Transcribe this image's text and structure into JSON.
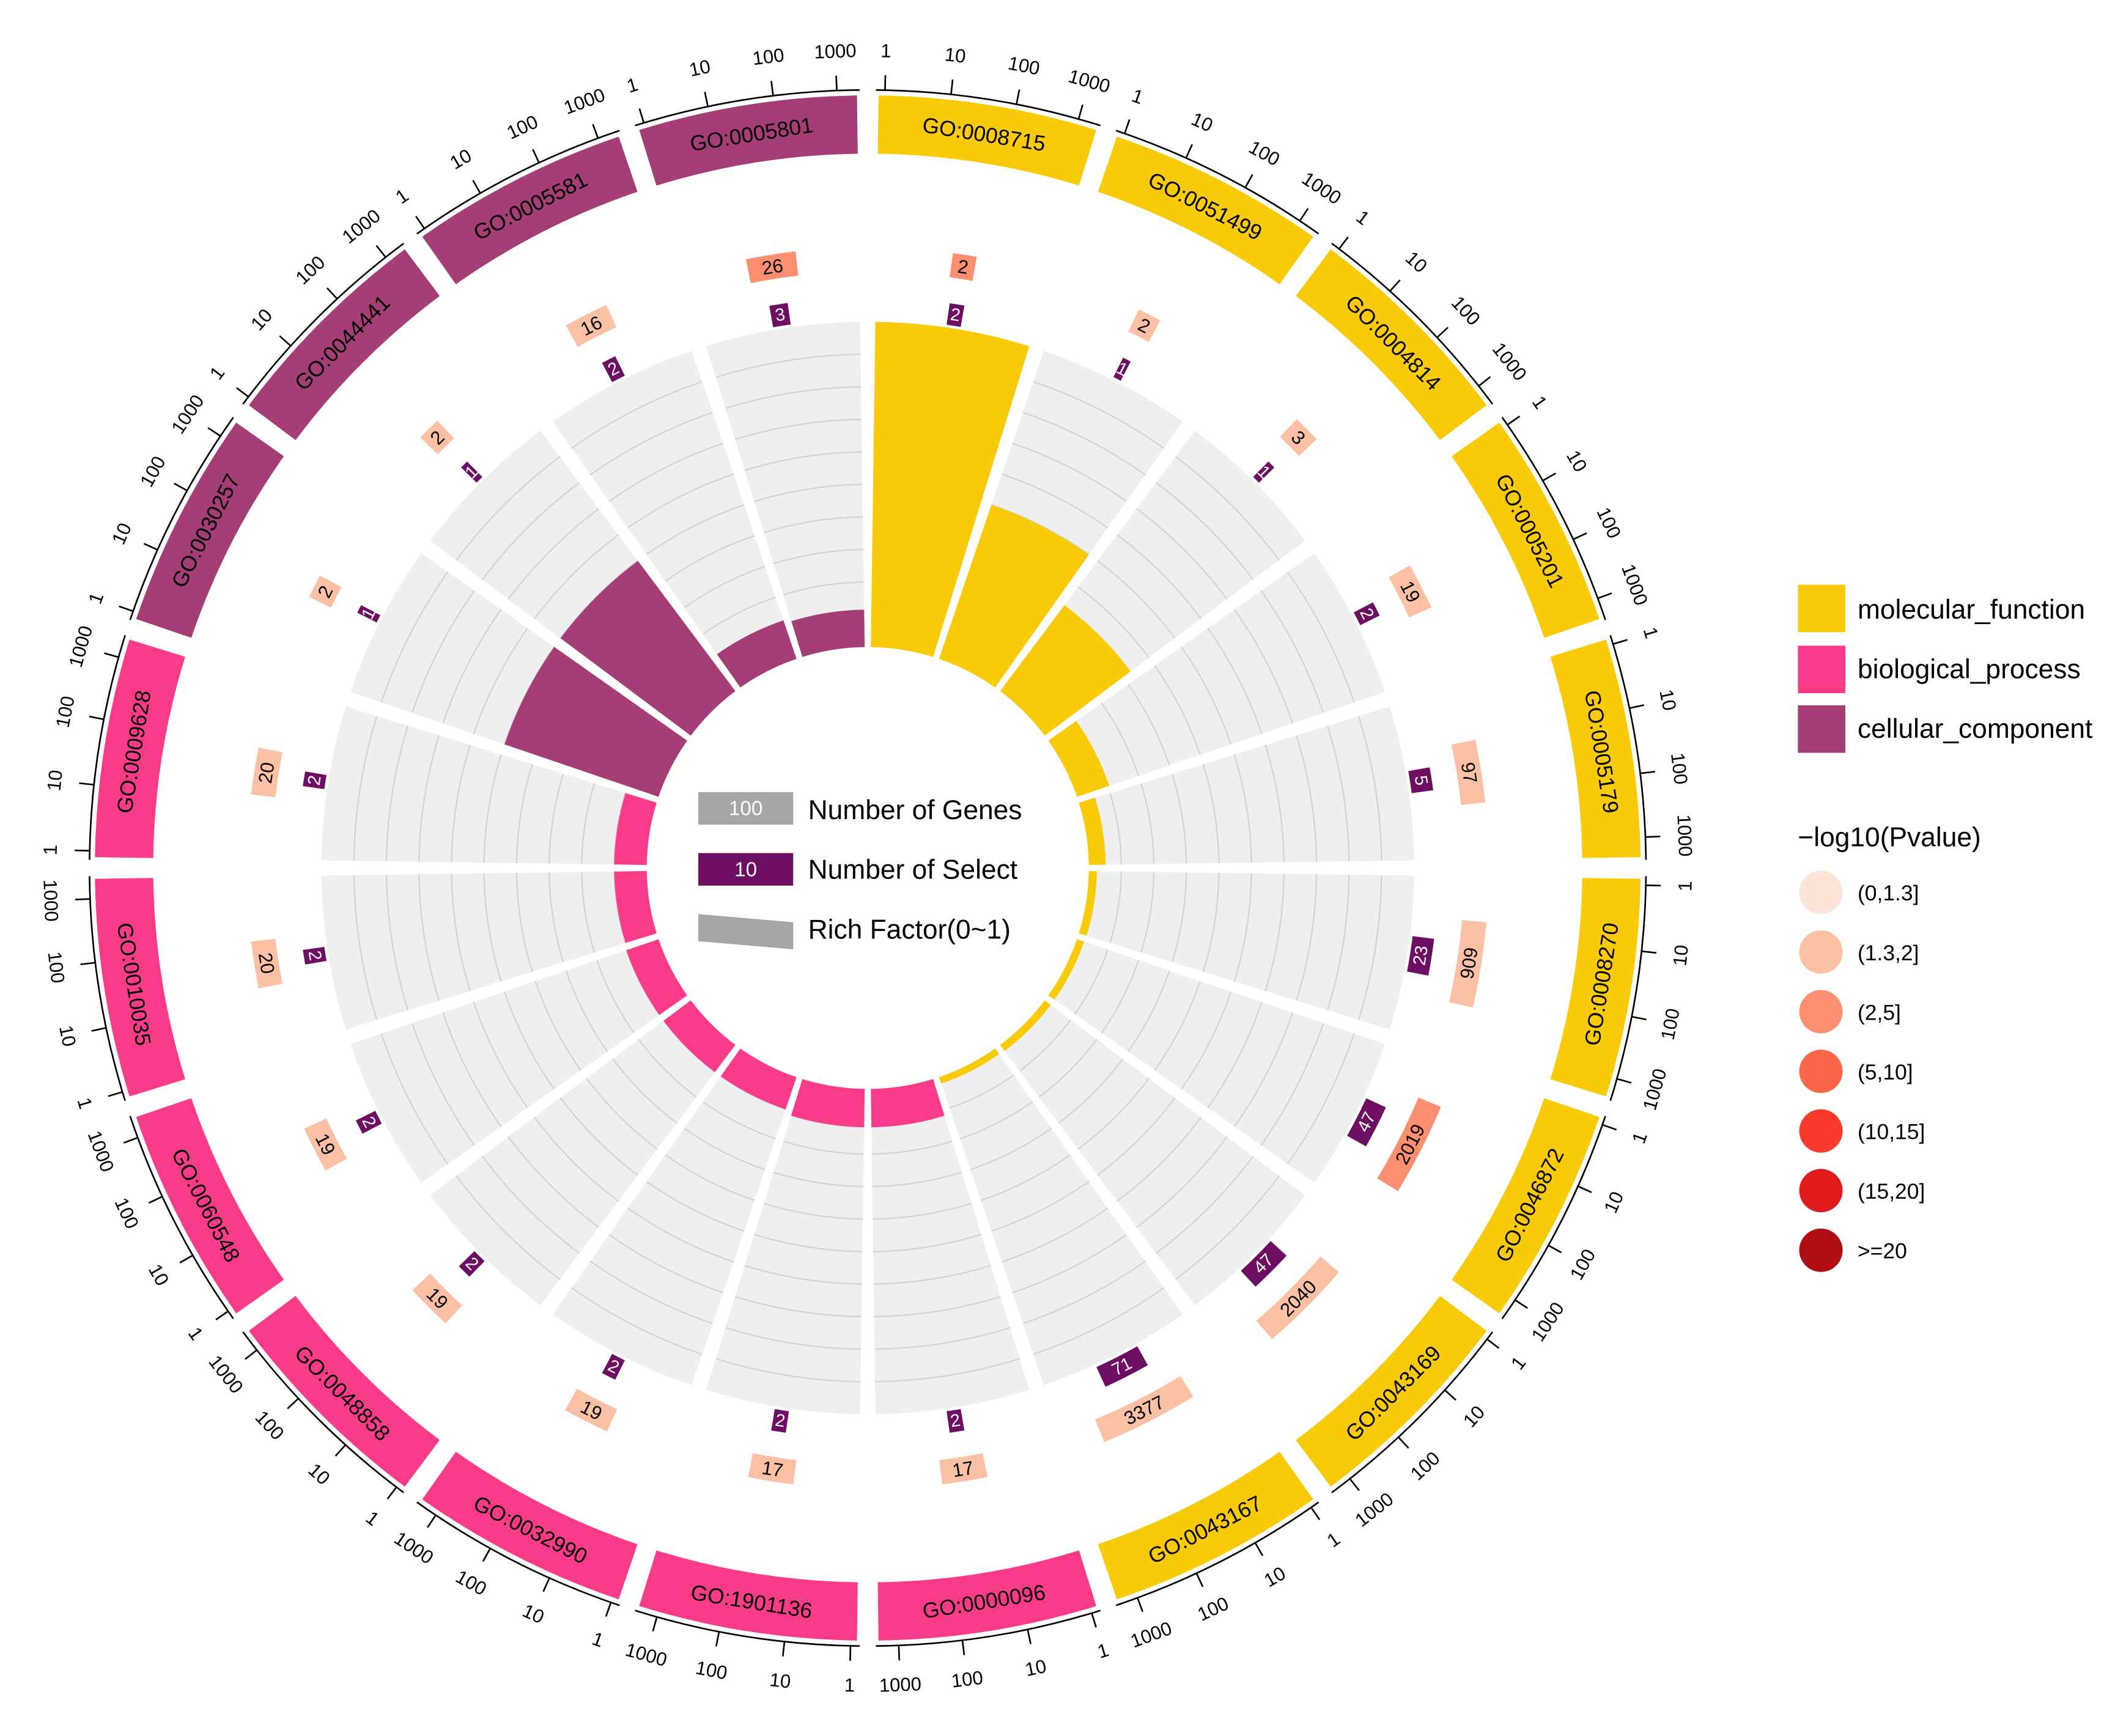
{
  "chart_data": {
    "type": "circular-go-enrichment",
    "tick_labels": [
      "1",
      "10",
      "100",
      "1000"
    ],
    "categories": [
      {
        "name": "molecular_function",
        "color": "#F9CB06"
      },
      {
        "name": "biological_process",
        "color": "#FA3B8A"
      },
      {
        "name": "cellular_component",
        "color": "#A53E76"
      }
    ],
    "terms": [
      {
        "id": "GO:0008715",
        "category": "molecular_function",
        "genes": 2,
        "select": 2,
        "rich_factor": 1.0,
        "pvalue_class": "(2,5]"
      },
      {
        "id": "GO:0051499",
        "category": "molecular_function",
        "genes": 2,
        "select": 1,
        "rich_factor": 0.5,
        "pvalue_class": "(1.3,2]"
      },
      {
        "id": "GO:0004814",
        "category": "molecular_function",
        "genes": 3,
        "select": 1,
        "rich_factor": 0.33,
        "pvalue_class": "(1.3,2]"
      },
      {
        "id": "GO:0005201",
        "category": "molecular_function",
        "genes": 19,
        "select": 2,
        "rich_factor": 0.105,
        "pvalue_class": "(1.3,2]"
      },
      {
        "id": "GO:0005179",
        "category": "molecular_function",
        "genes": 97,
        "select": 5,
        "rich_factor": 0.052,
        "pvalue_class": "(1.3,2]"
      },
      {
        "id": "GO:0008270",
        "category": "molecular_function",
        "genes": 909,
        "select": 23,
        "rich_factor": 0.025,
        "pvalue_class": "(1.3,2]"
      },
      {
        "id": "GO:0046872",
        "category": "molecular_function",
        "genes": 2019,
        "select": 47,
        "rich_factor": 0.023,
        "pvalue_class": "(2,5]"
      },
      {
        "id": "GO:0043169",
        "category": "molecular_function",
        "genes": 2040,
        "select": 47,
        "rich_factor": 0.023,
        "pvalue_class": "(1.3,2]"
      },
      {
        "id": "GO:0043167",
        "category": "molecular_function",
        "genes": 3377,
        "select": 71,
        "rich_factor": 0.021,
        "pvalue_class": "(1.3,2]"
      },
      {
        "id": "GO:0000096",
        "category": "biological_process",
        "genes": 17,
        "select": 2,
        "rich_factor": 0.118,
        "pvalue_class": "(1.3,2]"
      },
      {
        "id": "GO:1901136",
        "category": "biological_process",
        "genes": 17,
        "select": 2,
        "rich_factor": 0.118,
        "pvalue_class": "(1.3,2]"
      },
      {
        "id": "GO:0032990",
        "category": "biological_process",
        "genes": 19,
        "select": 2,
        "rich_factor": 0.105,
        "pvalue_class": "(1.3,2]"
      },
      {
        "id": "GO:0048858",
        "category": "biological_process",
        "genes": 19,
        "select": 2,
        "rich_factor": 0.105,
        "pvalue_class": "(1.3,2]"
      },
      {
        "id": "GO:0060548",
        "category": "biological_process",
        "genes": 19,
        "select": 2,
        "rich_factor": 0.105,
        "pvalue_class": "(1.3,2]"
      },
      {
        "id": "GO:0010035",
        "category": "biological_process",
        "genes": 20,
        "select": 2,
        "rich_factor": 0.1,
        "pvalue_class": "(1.3,2]"
      },
      {
        "id": "GO:0009628",
        "category": "biological_process",
        "genes": 20,
        "select": 2,
        "rich_factor": 0.1,
        "pvalue_class": "(1.3,2]"
      },
      {
        "id": "GO:0030257",
        "category": "cellular_component",
        "genes": 2,
        "select": 1,
        "rich_factor": 0.5,
        "pvalue_class": "(1.3,2]"
      },
      {
        "id": "GO:0044441",
        "category": "cellular_component",
        "genes": 2,
        "select": 1,
        "rich_factor": 0.5,
        "pvalue_class": "(1.3,2]"
      },
      {
        "id": "GO:0005581",
        "category": "cellular_component",
        "genes": 16,
        "select": 2,
        "rich_factor": 0.125,
        "pvalue_class": "(1.3,2]"
      },
      {
        "id": "GO:0005801",
        "category": "cellular_component",
        "genes": 26,
        "select": 3,
        "rich_factor": 0.115,
        "pvalue_class": "(2,5]"
      }
    ],
    "center_legend": [
      {
        "sample": "100",
        "label": "Number of Genes",
        "color": "#A6A6A6"
      },
      {
        "sample": "10",
        "label": "Number of Select",
        "color": "#6D0E63"
      },
      {
        "sample": "",
        "label": "Rich Factor(0~1)",
        "color": "#A6A6A6"
      }
    ],
    "pvalue_legend": {
      "title": "−log10(Pvalue)",
      "items": [
        {
          "label": "(0,1.3]",
          "color": "#FDE3D8"
        },
        {
          "label": "(1.3,2]",
          "color": "#FCC0A4"
        },
        {
          "label": "(2,5]",
          "color": "#FC8F6F"
        },
        {
          "label": "(5,10]",
          "color": "#FB6548"
        },
        {
          "label": "(10,15]",
          "color": "#F93A2C"
        },
        {
          "label": "(15,20]",
          "color": "#E11A1C"
        },
        {
          "label": ">=20",
          "color": "#B10C12"
        }
      ]
    },
    "select_color": "#6D0E63"
  }
}
